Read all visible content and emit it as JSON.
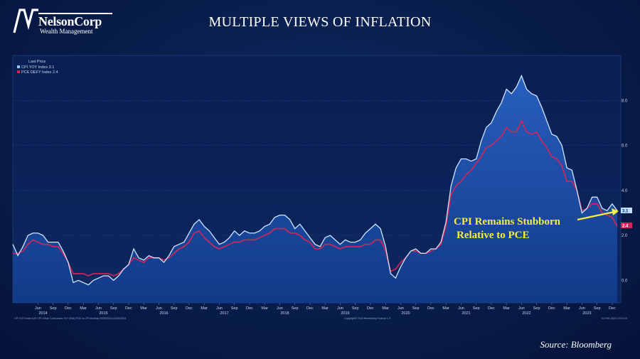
{
  "brand": {
    "name": "NelsonCorp",
    "subtitle": "Wealth Management"
  },
  "source": "Source: Bloomberg",
  "chart_data": {
    "type": "area",
    "title": "MULTIPLE VIEWS OF INFLATION",
    "legend_title": "Last Price",
    "legend_position": "top-left",
    "ylim": [
      -1,
      10
    ],
    "y_ticks": [
      0.0,
      2.0,
      4.0,
      6.0,
      8.0
    ],
    "y_tick_labels": [
      "0.0",
      "2.0",
      "4.0",
      "6.0",
      "8.0"
    ],
    "x_month_ticks": [
      {
        "i": 5,
        "label": "Jun"
      },
      {
        "i": 8,
        "label": "Sep"
      },
      {
        "i": 11,
        "label": "Dec"
      },
      {
        "i": 14,
        "label": "Mar"
      },
      {
        "i": 17,
        "label": "Jun"
      },
      {
        "i": 20,
        "label": "Sep"
      },
      {
        "i": 23,
        "label": "Dec"
      },
      {
        "i": 26,
        "label": "Mar"
      },
      {
        "i": 29,
        "label": "Jun"
      },
      {
        "i": 32,
        "label": "Sep"
      },
      {
        "i": 35,
        "label": "Dec"
      },
      {
        "i": 38,
        "label": "Mar"
      },
      {
        "i": 41,
        "label": "Jun"
      },
      {
        "i": 44,
        "label": "Sep"
      },
      {
        "i": 47,
        "label": "Dec"
      },
      {
        "i": 50,
        "label": "Mar"
      },
      {
        "i": 53,
        "label": "Jun"
      },
      {
        "i": 56,
        "label": "Sep"
      },
      {
        "i": 59,
        "label": "Dec"
      },
      {
        "i": 62,
        "label": "Mar"
      },
      {
        "i": 65,
        "label": "Jun"
      },
      {
        "i": 68,
        "label": "Sep"
      },
      {
        "i": 71,
        "label": "Dec"
      },
      {
        "i": 74,
        "label": "Mar"
      },
      {
        "i": 77,
        "label": "Jun"
      },
      {
        "i": 80,
        "label": "Sep"
      },
      {
        "i": 83,
        "label": "Dec"
      },
      {
        "i": 86,
        "label": "Mar"
      },
      {
        "i": 89,
        "label": "Jun"
      },
      {
        "i": 92,
        "label": "Sep"
      },
      {
        "i": 95,
        "label": "Dec"
      },
      {
        "i": 98,
        "label": "Mar"
      },
      {
        "i": 101,
        "label": "Jun"
      },
      {
        "i": 104,
        "label": "Sep"
      },
      {
        "i": 107,
        "label": "Dec"
      },
      {
        "i": 110,
        "label": "Mar"
      },
      {
        "i": 113,
        "label": "Jun"
      },
      {
        "i": 116,
        "label": "Sep"
      },
      {
        "i": 119,
        "label": "Dec"
      }
    ],
    "x_year_ticks": [
      {
        "i": 6,
        "label": "2014"
      },
      {
        "i": 18,
        "label": "2015"
      },
      {
        "i": 30,
        "label": "2016"
      },
      {
        "i": 42,
        "label": "2017"
      },
      {
        "i": 54,
        "label": "2018"
      },
      {
        "i": 66,
        "label": "2019"
      },
      {
        "i": 78,
        "label": "2020"
      },
      {
        "i": 90,
        "label": "2021"
      },
      {
        "i": 102,
        "label": "2022"
      },
      {
        "i": 114,
        "label": "2023"
      }
    ],
    "x_start": "2014-01",
    "x_end": "2024-01",
    "series": [
      {
        "name": "CPI YOY Index",
        "last": "3.1",
        "color": "#cfe6ff",
        "values": [
          1.6,
          1.1,
          1.5,
          2.0,
          2.1,
          2.1,
          2.0,
          1.7,
          1.7,
          1.7,
          1.3,
          0.8,
          -0.1,
          0.0,
          -0.1,
          -0.2,
          0.0,
          0.1,
          0.2,
          0.2,
          0.0,
          0.2,
          0.5,
          0.7,
          1.4,
          1.0,
          0.9,
          1.1,
          1.0,
          1.0,
          0.8,
          1.1,
          1.5,
          1.6,
          1.7,
          2.1,
          2.5,
          2.7,
          2.4,
          2.2,
          1.9,
          1.6,
          1.7,
          1.9,
          2.2,
          2.0,
          2.2,
          2.1,
          2.1,
          2.2,
          2.4,
          2.5,
          2.8,
          2.9,
          2.9,
          2.7,
          2.3,
          2.5,
          2.2,
          1.9,
          1.6,
          1.5,
          1.9,
          2.0,
          1.8,
          1.6,
          1.8,
          1.7,
          1.7,
          1.8,
          2.1,
          2.3,
          2.5,
          2.3,
          1.5,
          0.3,
          0.1,
          0.6,
          1.0,
          1.3,
          1.4,
          1.2,
          1.2,
          1.4,
          1.4,
          1.7,
          2.6,
          4.2,
          5.0,
          5.4,
          5.4,
          5.3,
          5.4,
          6.2,
          6.8,
          7.0,
          7.5,
          7.9,
          8.5,
          8.3,
          8.6,
          9.1,
          8.5,
          8.3,
          8.2,
          7.7,
          7.1,
          6.5,
          6.4,
          6.0,
          5.0,
          4.9,
          4.0,
          3.0,
          3.2,
          3.7,
          3.7,
          3.2,
          3.1,
          3.4,
          3.1
        ],
        "points": 121
      },
      {
        "name": "PCE DEFY Index",
        "last": "2.4",
        "color": "#d4255a",
        "values": [
          1.2,
          1.2,
          1.3,
          1.6,
          1.8,
          1.7,
          1.6,
          1.6,
          1.5,
          1.5,
          1.2,
          0.8,
          0.3,
          0.3,
          0.3,
          0.2,
          0.3,
          0.3,
          0.3,
          0.3,
          0.2,
          0.3,
          0.5,
          0.7,
          1.0,
          0.9,
          0.8,
          1.0,
          1.0,
          1.0,
          0.9,
          1.0,
          1.2,
          1.4,
          1.5,
          1.7,
          2.1,
          2.2,
          1.9,
          1.7,
          1.5,
          1.4,
          1.5,
          1.6,
          1.7,
          1.7,
          1.8,
          1.8,
          1.8,
          1.9,
          2.0,
          2.1,
          2.3,
          2.3,
          2.3,
          2.1,
          2.1,
          2.0,
          1.8,
          1.7,
          1.4,
          1.4,
          1.6,
          1.6,
          1.5,
          1.4,
          1.5,
          1.5,
          1.5,
          1.5,
          1.6,
          1.6,
          1.8,
          1.8,
          1.3,
          0.4,
          0.5,
          0.8,
          1.0,
          1.3,
          1.3,
          1.2,
          1.2,
          1.3,
          1.4,
          1.6,
          2.4,
          3.8,
          4.2,
          4.4,
          4.7,
          4.9,
          5.2,
          5.5,
          5.9,
          6.0,
          6.2,
          6.4,
          6.8,
          6.6,
          6.6,
          7.1,
          6.6,
          6.5,
          6.6,
          6.2,
          5.9,
          5.5,
          5.4,
          5.1,
          4.4,
          4.4,
          4.0,
          3.1,
          3.2,
          3.4,
          3.4,
          3.0,
          2.9,
          2.8,
          2.4
        ],
        "points": 121
      }
    ],
    "last_price_tags": [
      "3.1",
      "2.4"
    ],
    "annotation": {
      "text_line1": "CPI Remains Stubborn",
      "text_line2": "Relative to PCE",
      "color": "#f7ee3d"
    },
    "footnotes": {
      "left": "CPI YOY Index (US CPI Urban Consumers YoY NSA) PCE vs CPI  Monthly 04/30/2014-01/04/2024",
      "center": "Copyright© 2024 Bloomberg Finance L.P.",
      "right": "01-Feb-2024 13:03:15"
    }
  }
}
